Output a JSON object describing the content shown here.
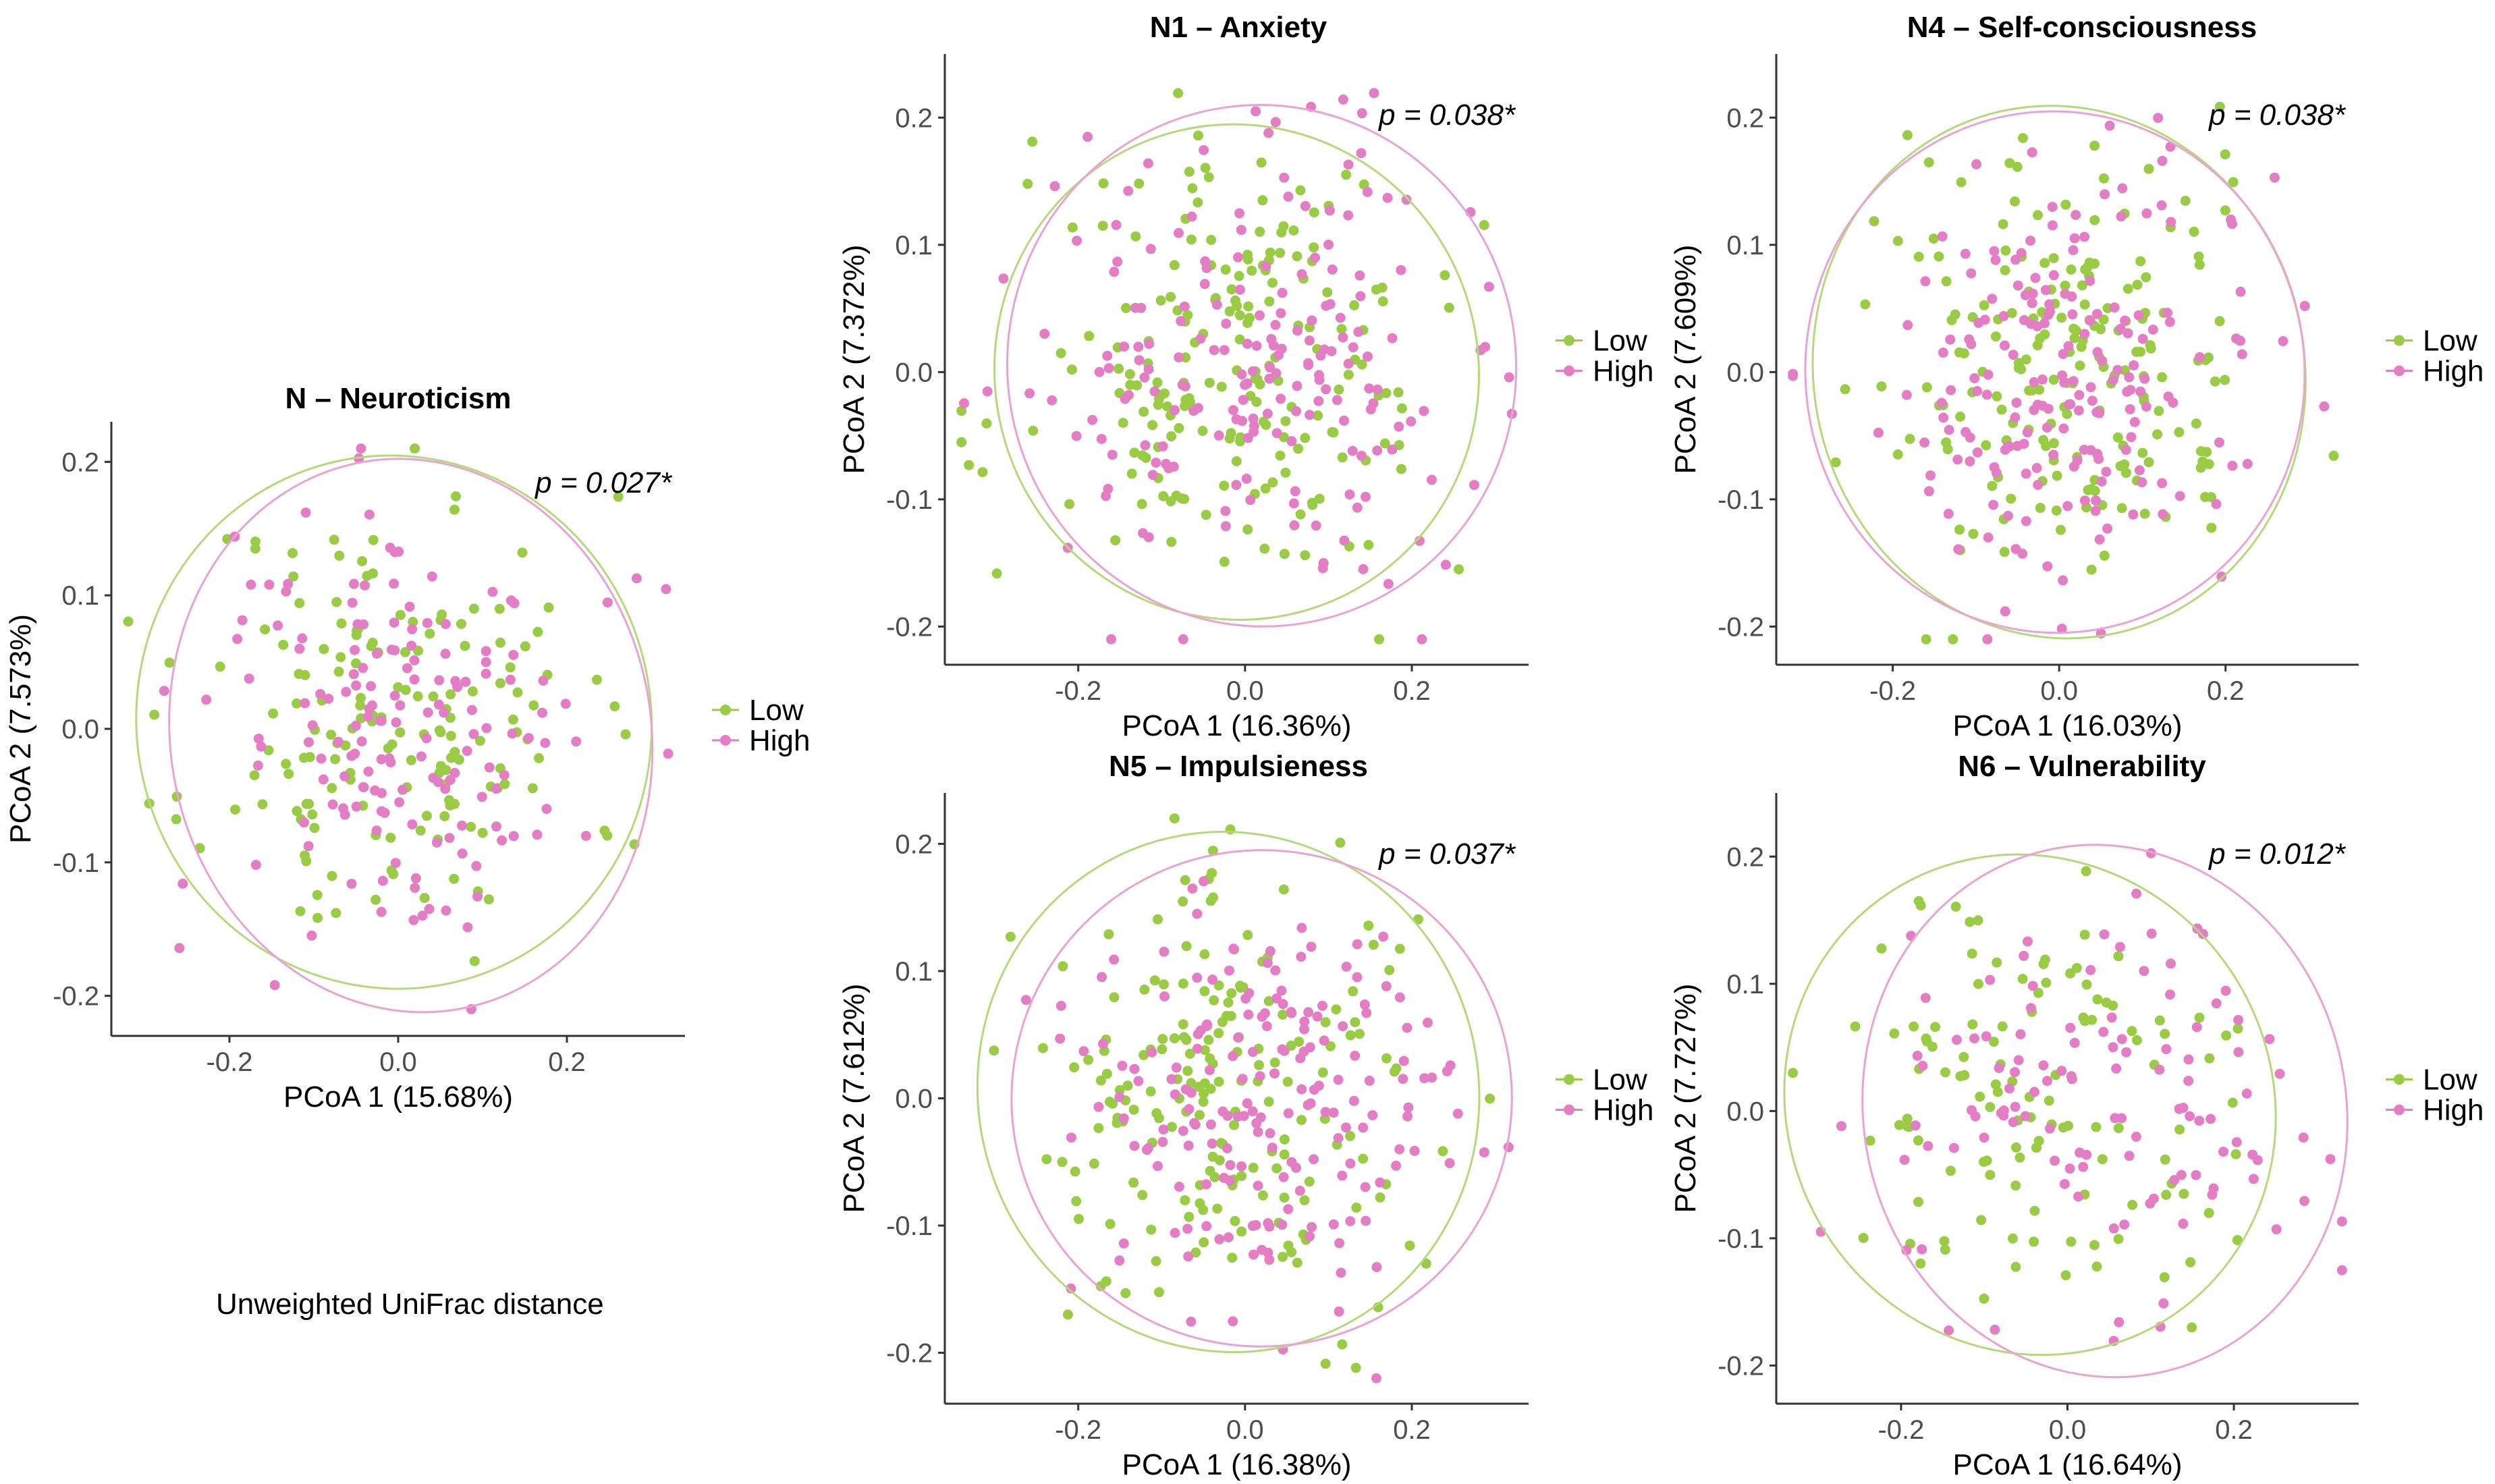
{
  "footnote": "Unweighted UniFrac distance",
  "legend": {
    "items": [
      {
        "label": "Low",
        "color": "#99cc44"
      },
      {
        "label": "High",
        "color": "#e37ec4"
      }
    ]
  },
  "colors": {
    "low": "#99cc44",
    "high": "#e37ec4",
    "ellipse_low": "#b5d97a",
    "ellipse_high": "#e9a3d3"
  },
  "chart_data": [
    {
      "id": "N",
      "type": "scatter",
      "title": "N – Neuroticism",
      "xlabel": "PCoA 1 (15.68%)",
      "ylabel": "PCoA 2 (7.573%)",
      "p_value": "p = 0.027*",
      "xlim": [
        -0.34,
        0.34
      ],
      "ylim": [
        -0.23,
        0.23
      ],
      "xticks": [
        -0.2,
        0.0,
        0.2
      ],
      "xtick_labels": [
        "-0.2",
        "0.0",
        "0.2"
      ],
      "yticks": [
        -0.2,
        -0.1,
        0.0,
        0.1,
        0.2
      ],
      "ytick_labels": [
        "-0.2",
        "-0.1",
        "0.0",
        "0.1",
        "0.2"
      ],
      "ellipses": {
        "Low": {
          "cx": -0.005,
          "cy": 0.005,
          "rx": 0.305,
          "ry": 0.2,
          "angle": -12
        },
        "High": {
          "cx": 0.015,
          "cy": -0.005,
          "rx": 0.285,
          "ry": 0.208,
          "angle": -10
        }
      },
      "series": [
        {
          "name": "Low",
          "n": 160,
          "x_spread": 0.115,
          "y_spread": 0.085,
          "seed": 11
        },
        {
          "name": "High",
          "n": 160,
          "x_spread": 0.11,
          "y_spread": 0.085,
          "seed": 12
        }
      ]
    },
    {
      "id": "N1",
      "type": "scatter",
      "title": "N1 – Anxiety",
      "xlabel": "PCoA 1 (16.36%)",
      "ylabel": "PCoA 2 (7.372%)",
      "p_value": "p = 0.038*",
      "xlim": [
        -0.36,
        0.34
      ],
      "ylim": [
        -0.23,
        0.25
      ],
      "xticks": [
        -0.2,
        0.0,
        0.2
      ],
      "xtick_labels": [
        "-0.2",
        "0.0",
        "0.2"
      ],
      "yticks": [
        -0.2,
        -0.1,
        0.0,
        0.1,
        0.2
      ],
      "ytick_labels": [
        "-0.2",
        "-0.1",
        "0.0",
        "0.1",
        "0.2"
      ],
      "ellipses": {
        "Low": {
          "cx": -0.01,
          "cy": 0.0,
          "rx": 0.29,
          "ry": 0.195,
          "angle": -15
        },
        "High": {
          "cx": 0.02,
          "cy": 0.005,
          "rx": 0.305,
          "ry": 0.205,
          "angle": -8
        }
      },
      "series": [
        {
          "name": "Low",
          "n": 190,
          "x_spread": 0.12,
          "y_spread": 0.085,
          "seed": 21
        },
        {
          "name": "High",
          "n": 190,
          "x_spread": 0.12,
          "y_spread": 0.085,
          "seed": 22
        }
      ]
    },
    {
      "id": "N4",
      "type": "scatter",
      "title": "N4 – Self-consciousness",
      "xlabel": "PCoA 1 (16.03%)",
      "ylabel": "PCoA 2 (7.609%)",
      "p_value": "p = 0.038*",
      "xlim": [
        -0.34,
        0.36
      ],
      "ylim": [
        -0.23,
        0.25
      ],
      "xticks": [
        -0.2,
        0.0,
        0.2
      ],
      "xtick_labels": [
        "-0.2",
        "0.0",
        "0.2"
      ],
      "yticks": [
        -0.2,
        -0.1,
        0.0,
        0.1,
        0.2
      ],
      "ytick_labels": [
        "-0.2",
        "-0.1",
        "0.0",
        "0.1",
        "0.2"
      ],
      "ellipses": {
        "Low": {
          "cx": 0.0,
          "cy": 0.0,
          "rx": 0.295,
          "ry": 0.21,
          "angle": -12
        },
        "High": {
          "cx": -0.005,
          "cy": 0.0,
          "rx": 0.3,
          "ry": 0.205,
          "angle": -5
        }
      },
      "series": [
        {
          "name": "Low",
          "n": 190,
          "x_spread": 0.12,
          "y_spread": 0.085,
          "seed": 31
        },
        {
          "name": "High",
          "n": 190,
          "x_spread": 0.12,
          "y_spread": 0.085,
          "seed": 32
        }
      ]
    },
    {
      "id": "N5",
      "type": "scatter",
      "title": "N5 – Impulsieness",
      "xlabel": "PCoA 1 (16.38%)",
      "ylabel": "PCoA 2 (7.612%)",
      "p_value": "p = 0.037*",
      "xlim": [
        -0.36,
        0.34
      ],
      "ylim": [
        -0.24,
        0.24
      ],
      "xticks": [
        -0.2,
        0.0,
        0.2
      ],
      "xtick_labels": [
        "-0.2",
        "0.0",
        "0.2"
      ],
      "yticks": [
        -0.2,
        -0.1,
        0.0,
        0.1,
        0.2
      ],
      "ytick_labels": [
        "-0.2",
        "-0.1",
        "0.0",
        "0.1",
        "0.2"
      ],
      "ellipses": {
        "Low": {
          "cx": -0.02,
          "cy": 0.005,
          "rx": 0.3,
          "ry": 0.205,
          "angle": -15
        },
        "High": {
          "cx": 0.02,
          "cy": 0.0,
          "rx": 0.3,
          "ry": 0.195,
          "angle": -8
        }
      },
      "series": [
        {
          "name": "Low",
          "n": 185,
          "x_spread": 0.12,
          "y_spread": 0.085,
          "seed": 41
        },
        {
          "name": "High",
          "n": 185,
          "x_spread": 0.12,
          "y_spread": 0.085,
          "seed": 42
        }
      ]
    },
    {
      "id": "N6",
      "type": "scatter",
      "title": "N6 – Vulnerability",
      "xlabel": "PCoA 1 (16.64%)",
      "ylabel": "PCoA 2 (7.727%)",
      "p_value": "p = 0.012*",
      "xlim": [
        -0.35,
        0.35
      ],
      "ylim": [
        -0.23,
        0.25
      ],
      "xticks": [
        -0.2,
        0.0,
        0.2
      ],
      "xtick_labels": [
        "-0.2",
        "0.0",
        "0.2"
      ],
      "yticks": [
        -0.2,
        -0.1,
        0.0,
        0.1,
        0.2
      ],
      "ytick_labels": [
        "-0.2",
        "-0.1",
        "0.0",
        "0.1",
        "0.2"
      ],
      "ellipses": {
        "Low": {
          "cx": -0.045,
          "cy": 0.005,
          "rx": 0.29,
          "ry": 0.2,
          "angle": -35
        },
        "High": {
          "cx": 0.045,
          "cy": 0.0,
          "rx": 0.29,
          "ry": 0.21,
          "angle": -12
        }
      },
      "series": [
        {
          "name": "Low",
          "n": 115,
          "x_spread": 0.125,
          "y_spread": 0.085,
          "seed": 51
        },
        {
          "name": "High",
          "n": 115,
          "x_spread": 0.125,
          "y_spread": 0.085,
          "seed": 52
        }
      ]
    }
  ]
}
